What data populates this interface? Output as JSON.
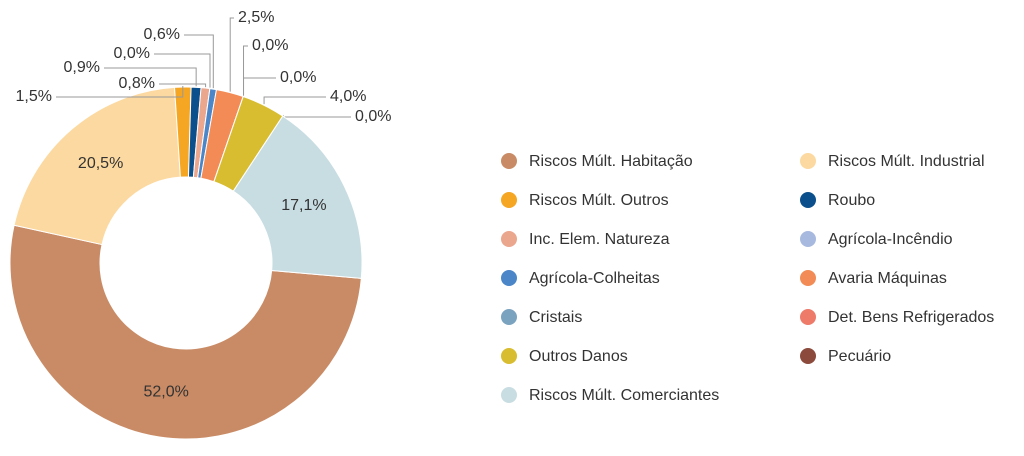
{
  "chart_data": {
    "type": "donut",
    "categories": [
      "Riscos Múlt. Habitação",
      "Riscos Múlt. Industrial",
      "Riscos Múlt. Outros",
      "Roubo",
      "Inc. Elem. Natureza",
      "Agrícola-Incêndio",
      "Agrícola-Colheitas",
      "Avaria Máquinas",
      "Cristais",
      "Det. Bens Refrigerados",
      "Outros Danos",
      "Pecuário",
      "Riscos Múlt. Comerciantes"
    ],
    "values": [
      52.0,
      20.5,
      1.5,
      0.9,
      0.8,
      0.0,
      0.6,
      2.5,
      0.0,
      0.0,
      4.0,
      0.0,
      17.1
    ],
    "value_labels": [
      "52,0%",
      "20,5%",
      "1,5%",
      "0,9%",
      "0,8%",
      "0,0%",
      "0,6%",
      "2,5%",
      "0,0%",
      "0,0%",
      "4,0%",
      "0,0%",
      "17,1%"
    ],
    "colors": [
      "#c98b65",
      "#fcd9a0",
      "#f5a623",
      "#0b4f8c",
      "#eba68e",
      "#a8b9e0",
      "#4a86c8",
      "#f28b55",
      "#7aa3bf",
      "#ee7a6a",
      "#d8bd30",
      "#8b4a3c",
      "#c8dde2"
    ]
  }
}
